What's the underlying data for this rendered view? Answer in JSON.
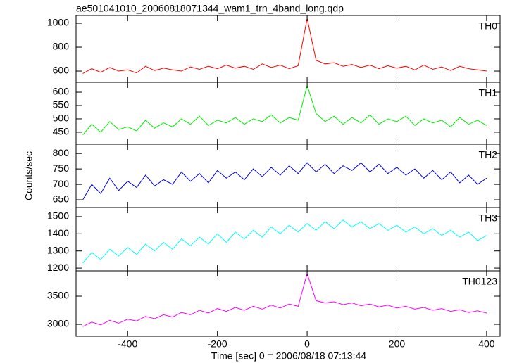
{
  "chart_data": {
    "type": "line",
    "title": "ae501041010_20060818071344_wam1_trn_4band_long.qdp",
    "x_label": "Time [sec] 0 = 2006/08/18 07:13:44",
    "y_label": "Counts/sec",
    "xlim": [
      -515,
      430
    ],
    "xticks": [
      -400,
      -200,
      0,
      200,
      400
    ],
    "x": [
      -500,
      -480,
      -460,
      -440,
      -420,
      -400,
      -380,
      -360,
      -340,
      -320,
      -300,
      -280,
      -260,
      -240,
      -220,
      -200,
      -180,
      -160,
      -140,
      -120,
      -100,
      -80,
      -60,
      -40,
      -20,
      0,
      20,
      40,
      60,
      80,
      100,
      120,
      140,
      160,
      180,
      200,
      220,
      240,
      260,
      280,
      300,
      320,
      340,
      360,
      380,
      400
    ],
    "series": [
      {
        "name": "TH0",
        "color": "#ff0000",
        "ylim": [
          506,
          1065
        ],
        "yticks": [
          600,
          800,
          1000
        ],
        "values": [
          580,
          620,
          590,
          630,
          600,
          610,
          585,
          640,
          605,
          625,
          610,
          600,
          635,
          615,
          640,
          620,
          650,
          625,
          640,
          615,
          660,
          630,
          650,
          620,
          645,
          1040,
          690,
          660,
          670,
          640,
          655,
          630,
          650,
          620,
          645,
          625,
          640,
          610,
          650,
          615,
          635,
          605,
          640,
          620,
          610,
          600
        ]
      },
      {
        "name": "TH1",
        "color": "#00ee00",
        "ylim": [
          405,
          637
        ],
        "yticks": [
          450,
          500,
          550,
          600
        ],
        "values": [
          440,
          480,
          450,
          490,
          460,
          470,
          455,
          495,
          465,
          485,
          470,
          500,
          480,
          510,
          475,
          495,
          485,
          505,
          480,
          500,
          490,
          515,
          485,
          505,
          495,
          625,
          520,
          490,
          510,
          480,
          505,
          485,
          515,
          480,
          500,
          490,
          510,
          475,
          500,
          485,
          495,
          470,
          505,
          480,
          495,
          475
        ]
      },
      {
        "name": "TH2",
        "color": "#0000dd",
        "ylim": [
          625,
          830
        ],
        "yticks": [
          650,
          700,
          750,
          800
        ],
        "values": [
          650,
          700,
          670,
          720,
          680,
          710,
          690,
          730,
          695,
          715,
          700,
          740,
          710,
          735,
          705,
          745,
          720,
          740,
          715,
          750,
          725,
          755,
          730,
          760,
          735,
          770,
          740,
          765,
          735,
          760,
          745,
          770,
          740,
          765,
          735,
          755,
          730,
          750,
          720,
          745,
          715,
          740,
          705,
          730,
          700,
          720
        ]
      },
      {
        "name": "TH3",
        "color": "#00ffff",
        "ylim": [
          1184,
          1553
        ],
        "yticks": [
          1200,
          1300,
          1400,
          1500
        ],
        "values": [
          1230,
          1290,
          1250,
          1310,
          1270,
          1320,
          1280,
          1340,
          1300,
          1350,
          1310,
          1370,
          1330,
          1380,
          1340,
          1400,
          1350,
          1410,
          1370,
          1420,
          1380,
          1440,
          1400,
          1450,
          1410,
          1460,
          1420,
          1470,
          1430,
          1480,
          1440,
          1470,
          1430,
          1460,
          1420,
          1450,
          1410,
          1440,
          1400,
          1430,
          1390,
          1420,
          1380,
          1410,
          1360,
          1390
        ]
      },
      {
        "name": "TH0123",
        "color": "#ff00ff",
        "ylim": [
          2788,
          3950
        ],
        "yticks": [
          3000,
          3500
        ],
        "values": [
          2960,
          3040,
          2990,
          3070,
          3020,
          3090,
          3060,
          3140,
          3100,
          3170,
          3130,
          3210,
          3170,
          3250,
          3200,
          3280,
          3230,
          3300,
          3250,
          3320,
          3270,
          3340,
          3290,
          3360,
          3320,
          3900,
          3420,
          3380,
          3400,
          3350,
          3380,
          3330,
          3360,
          3310,
          3340,
          3290,
          3320,
          3270,
          3300,
          3250,
          3280,
          3230,
          3260,
          3210,
          3240,
          3200
        ]
      }
    ]
  }
}
